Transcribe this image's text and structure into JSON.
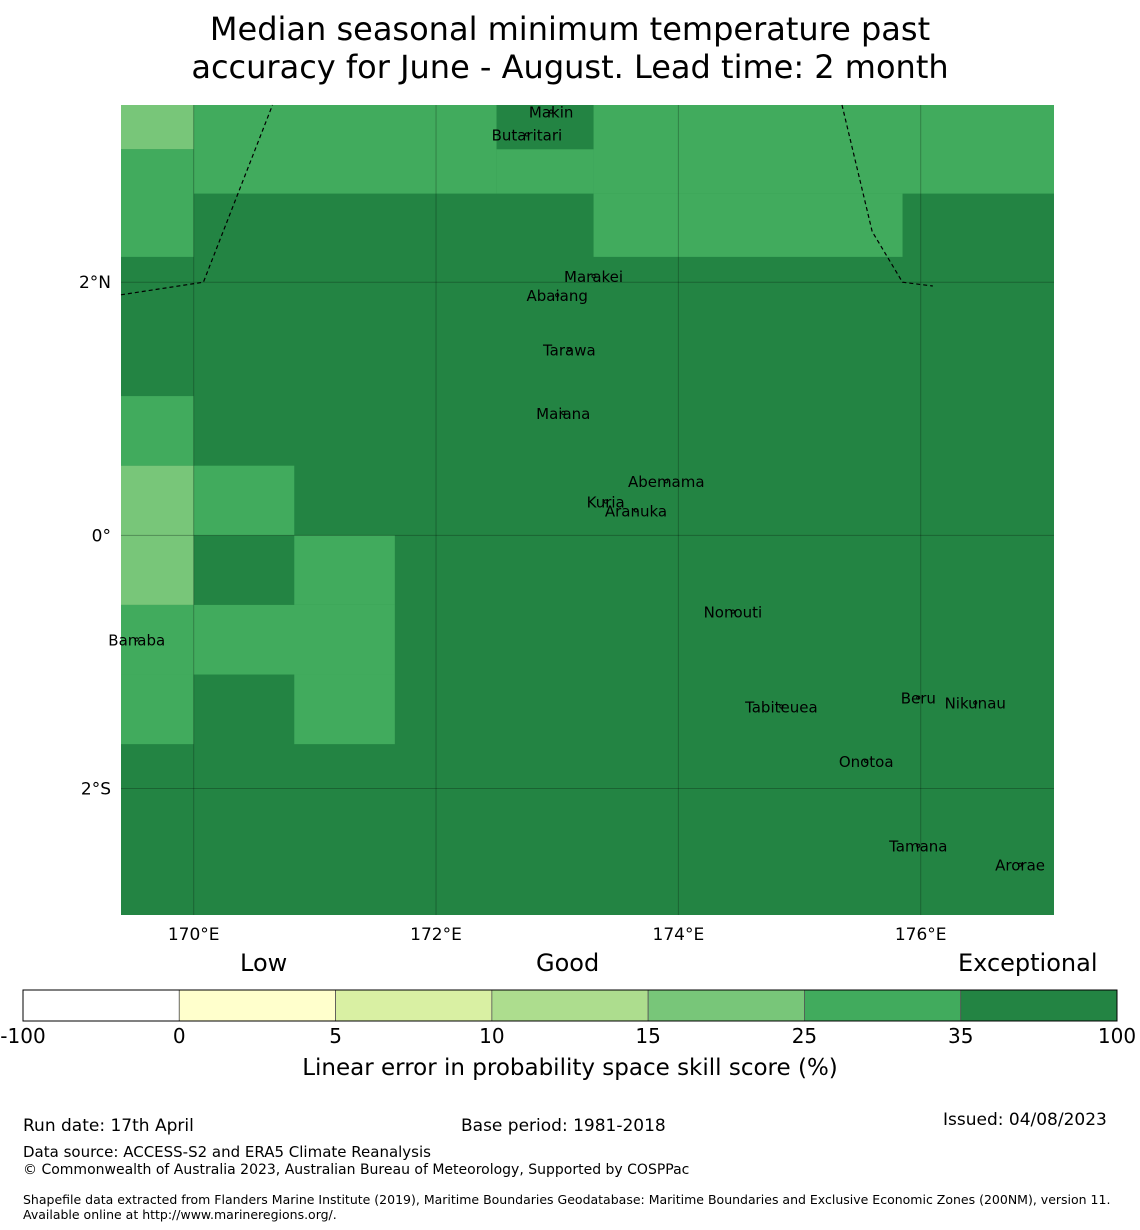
{
  "title": {
    "line1": "Median seasonal minimum temperature past",
    "line2": "accuracy for June - August. Lead time: 2 month"
  },
  "map": {
    "lon_range": [
      169.4,
      177.1
    ],
    "lat_range": [
      -3.0,
      3.4
    ],
    "x_ticks": [
      {
        "value": 170,
        "label": "170°E"
      },
      {
        "value": 172,
        "label": "172°E"
      },
      {
        "value": 174,
        "label": "174°E"
      },
      {
        "value": 176,
        "label": "176°E"
      }
    ],
    "y_ticks": [
      {
        "value": 2,
        "label": "2°N"
      },
      {
        "value": 0,
        "label": "0°"
      },
      {
        "value": -2,
        "label": "2°S"
      }
    ],
    "grid_lines": true,
    "cells": [
      {
        "lon0": 169.4,
        "lon1": 170.0,
        "lat0": 3.05,
        "lat1": 3.4,
        "category": "15-25"
      },
      {
        "lon0": 169.4,
        "lon1": 170.0,
        "lat0": 2.2,
        "lat1": 3.05,
        "category": "25-35"
      },
      {
        "lon0": 170.0,
        "lon1": 172.5,
        "lat0": 2.7,
        "lat1": 3.4,
        "category": "25-35"
      },
      {
        "lon0": 172.5,
        "lon1": 173.3,
        "lat0": 3.05,
        "lat1": 3.4,
        "category": "35-100"
      },
      {
        "lon0": 172.5,
        "lon1": 173.3,
        "lat0": 2.7,
        "lat1": 3.05,
        "category": "25-35"
      },
      {
        "lon0": 173.3,
        "lon1": 177.1,
        "lat0": 2.7,
        "lat1": 3.4,
        "category": "25-35"
      },
      {
        "lon0": 173.3,
        "lon1": 175.85,
        "lat0": 2.2,
        "lat1": 2.7,
        "category": "25-35"
      },
      {
        "lon0": 169.4,
        "lon1": 170.0,
        "lat0": 0.55,
        "lat1": 1.1,
        "category": "25-35"
      },
      {
        "lon0": 169.4,
        "lon1": 170.0,
        "lat0": 0.0,
        "lat1": 0.55,
        "category": "15-25"
      },
      {
        "lon0": 170.0,
        "lon1": 170.83,
        "lat0": 0.0,
        "lat1": 0.55,
        "category": "25-35"
      },
      {
        "lon0": 169.4,
        "lon1": 170.0,
        "lat0": -0.55,
        "lat1": 0.0,
        "category": "15-25"
      },
      {
        "lon0": 170.83,
        "lon1": 171.66,
        "lat0": -0.55,
        "lat1": 0.0,
        "category": "25-35"
      },
      {
        "lon0": 169.4,
        "lon1": 171.66,
        "lat0": -1.1,
        "lat1": -0.55,
        "category": "25-35"
      },
      {
        "lon0": 169.4,
        "lon1": 170.0,
        "lat0": -1.65,
        "lat1": -1.1,
        "category": "25-35"
      },
      {
        "lon0": 170.83,
        "lon1": 171.66,
        "lat0": -1.65,
        "lat1": -1.1,
        "category": "25-35"
      }
    ],
    "boundaries": [
      [
        [
          169.4,
          1.9
        ],
        [
          170.08,
          2.0
        ],
        [
          170.65,
          3.4
        ]
      ],
      [
        [
          175.35,
          3.4
        ],
        [
          175.6,
          2.4
        ],
        [
          175.85,
          2.0
        ],
        [
          176.1,
          1.97
        ]
      ]
    ],
    "islands": [
      {
        "name": "Makin",
        "lon": 172.95,
        "lat": 3.3
      },
      {
        "name": "Butaritari",
        "lon": 172.75,
        "lat": 3.12
      },
      {
        "name": "Marakei",
        "lon": 173.3,
        "lat": 2.0
      },
      {
        "name": "Abaiang",
        "lon": 173.0,
        "lat": 1.85
      },
      {
        "name": "Tarawa",
        "lon": 173.1,
        "lat": 1.42
      },
      {
        "name": "Maiana",
        "lon": 173.05,
        "lat": 0.92
      },
      {
        "name": "Abemama",
        "lon": 173.9,
        "lat": 0.38
      },
      {
        "name": "Kuria",
        "lon": 173.4,
        "lat": 0.22
      },
      {
        "name": "Aranuka",
        "lon": 173.65,
        "lat": 0.15
      },
      {
        "name": "Nonouti",
        "lon": 174.45,
        "lat": -0.65
      },
      {
        "name": "Banaba",
        "lon": 169.53,
        "lat": -0.87
      },
      {
        "name": "Tabiteuea",
        "lon": 174.85,
        "lat": -1.4
      },
      {
        "name": "Beru",
        "lon": 175.98,
        "lat": -1.33
      },
      {
        "name": "Nikunau",
        "lon": 176.45,
        "lat": -1.37
      },
      {
        "name": "Onotoa",
        "lon": 175.55,
        "lat": -1.83
      },
      {
        "name": "Tamana",
        "lon": 175.98,
        "lat": -2.5
      },
      {
        "name": "Arorae",
        "lon": 176.82,
        "lat": -2.65
      }
    ]
  },
  "colorbar": {
    "categories": [
      {
        "range": "-100-0",
        "color": "#ffffff"
      },
      {
        "range": "0-5",
        "color": "#ffffcc"
      },
      {
        "range": "5-10",
        "color": "#d9f0a3"
      },
      {
        "range": "10-15",
        "color": "#addd8e"
      },
      {
        "range": "15-25",
        "color": "#78c679"
      },
      {
        "range": "25-35",
        "color": "#41ab5d"
      },
      {
        "range": "35-100",
        "color": "#238443"
      }
    ],
    "ticks": [
      "-100",
      "0",
      "5",
      "10",
      "15",
      "25",
      "35",
      "100"
    ],
    "labels": {
      "low": "Low",
      "good": "Good",
      "exceptional": "Exceptional"
    },
    "title": "Linear error in probability space skill score (%)"
  },
  "background_category": "35-100",
  "footer": {
    "run_date": "Run date: 17th April",
    "base_period": "Base period: 1981-2018",
    "issued": "Issued: 04/08/2023",
    "data_source": "Data source: ACCESS-S2 and ERA5 Climate Reanalysis",
    "copyright": "© Commonwealth of Australia 2023, Australian Bureau of Meteorology, Supported by COSPPac",
    "shapefile": "Shapefile data extracted from Flanders Marine Institute (2019), Maritime Boundaries Geodatabase: Maritime Boundaries and Exclusive Economic Zones (200NM), version 11. Available online at http://www.marineregions.org/."
  }
}
